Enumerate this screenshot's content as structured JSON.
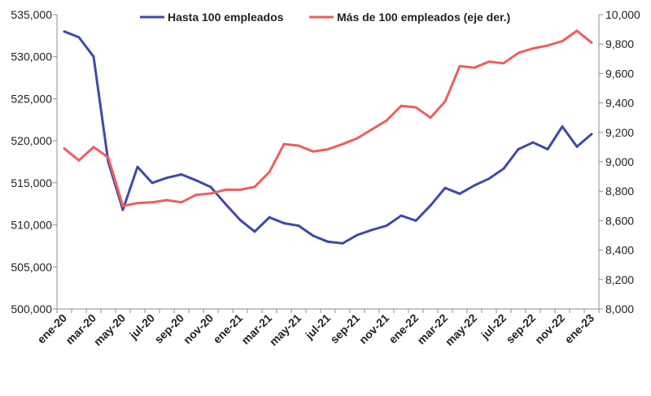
{
  "chart_data": {
    "type": "line",
    "title": "",
    "xlabel": "",
    "ylabel": "",
    "y2label": "",
    "x": [
      "ene-20",
      "feb-20",
      "mar-20",
      "abr-20",
      "may-20",
      "jun-20",
      "jul-20",
      "ago-20",
      "sep-20",
      "oct-20",
      "nov-20",
      "dic-20",
      "ene-21",
      "feb-21",
      "mar-21",
      "abr-21",
      "may-21",
      "jun-21",
      "jul-21",
      "ago-21",
      "sep-21",
      "oct-21",
      "nov-21",
      "dic-21",
      "ene-22",
      "feb-22",
      "mar-22",
      "abr-22",
      "may-22",
      "jun-22",
      "jul-22",
      "ago-22",
      "sep-22",
      "oct-22",
      "nov-22",
      "dic-22",
      "ene-23"
    ],
    "xtick_labels": [
      "ene-20",
      "mar-20",
      "may-20",
      "jul-20",
      "sep-20",
      "nov-20",
      "ene-21",
      "mar-21",
      "may-21",
      "jul-21",
      "sep-21",
      "nov-21",
      "ene-22",
      "mar-22",
      "may-22",
      "jul-22",
      "sep-22",
      "nov-22",
      "ene-23"
    ],
    "ylim": [
      500000,
      535000
    ],
    "y_ticks": [
      "500,000",
      "505,000",
      "510,000",
      "515,000",
      "520,000",
      "525,000",
      "530,000",
      "535,000"
    ],
    "y2lim": [
      8000,
      10000
    ],
    "y2_ticks": [
      "8,000",
      "8,200",
      "8,400",
      "8,600",
      "8,800",
      "9,000",
      "9,200",
      "9,400",
      "9,600",
      "9,800",
      "10,000"
    ],
    "grid": false,
    "legend_position": "top",
    "series": [
      {
        "name": "Hasta 100 empleados",
        "axis": "left",
        "color": "#3f4aa8",
        "values": [
          533000,
          532300,
          530000,
          517500,
          511800,
          516900,
          515000,
          515600,
          516000,
          515300,
          514500,
          512500,
          510600,
          509200,
          510900,
          510200,
          509900,
          508700,
          508000,
          507800,
          508800,
          509400,
          509900,
          511100,
          510500,
          512300,
          514400,
          513700,
          514700,
          515500,
          516700,
          519000,
          519800,
          519000,
          521700,
          519300,
          520800
        ]
      },
      {
        "name": "Más de 100 empleados (eje der.)",
        "axis": "right",
        "color": "#ee5e5e",
        "values": [
          9090,
          9010,
          9100,
          9030,
          8700,
          8720,
          8725,
          8740,
          8725,
          8775,
          8785,
          8810,
          8810,
          8830,
          8930,
          9120,
          9110,
          9070,
          9085,
          9120,
          9160,
          9220,
          9280,
          9380,
          9370,
          9300,
          9410,
          9650,
          9640,
          9680,
          9670,
          9740,
          9770,
          9790,
          9820,
          9890,
          9810
        ]
      }
    ]
  }
}
